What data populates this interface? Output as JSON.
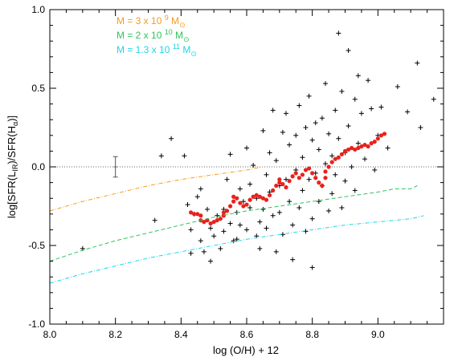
{
  "chart_data": {
    "type": "scatter",
    "xlabel": "log (O/H) + 12",
    "ylabel": {
      "parts": [
        "log[SFR(L",
        "IR",
        ")/SFR(H",
        "α",
        ")]"
      ]
    },
    "xlim": [
      8.0,
      9.2
    ],
    "ylim": [
      -1.0,
      1.0
    ],
    "xticks": [
      8.0,
      8.2,
      8.4,
      8.6,
      8.8,
      9.0
    ],
    "xtick_labels": [
      "8.0",
      "8.2",
      "8.4",
      "8.6",
      "8.8",
      "9.0"
    ],
    "yticks": [
      -1.0,
      -0.5,
      0.0,
      0.5,
      1.0
    ],
    "ytick_labels": [
      "-1.0",
      "-0.5",
      "0.0",
      "0.5",
      "1.0"
    ],
    "grid": false,
    "legend_position": "top-left",
    "legend": [
      {
        "text": "M = 3 x 10",
        "exp": "9",
        "sub": "M",
        "sym": "⊙",
        "color": "#f39c24"
      },
      {
        "text": "M = 2 x 10",
        "exp": "10",
        "sub": "M",
        "sym": "⊙",
        "color": "#2fc45c"
      },
      {
        "text": "M = 1.3 x 10",
        "exp": "11",
        "sub": "M",
        "sym": "⊙",
        "color": "#1fd6e6"
      }
    ],
    "reference_line": {
      "y": 0.0,
      "style": "dotted",
      "color": "#666666"
    },
    "error_bar": {
      "x": 8.2,
      "y": 0.0,
      "yerr": 0.065
    },
    "series": [
      {
        "type": "scatter-plus",
        "color": "#000000",
        "points": [
          [
            8.1,
            -0.52
          ],
          [
            8.32,
            -0.34
          ],
          [
            8.34,
            0.07
          ],
          [
            8.37,
            0.18
          ],
          [
            8.41,
            0.07
          ],
          [
            8.42,
            -0.24
          ],
          [
            8.43,
            -0.4
          ],
          [
            8.43,
            -0.55
          ],
          [
            8.44,
            -0.3
          ],
          [
            8.45,
            -0.19
          ],
          [
            8.46,
            -0.14
          ],
          [
            8.46,
            -0.47
          ],
          [
            8.47,
            -0.54
          ],
          [
            8.48,
            -0.27
          ],
          [
            8.49,
            -0.39
          ],
          [
            8.49,
            -0.6
          ],
          [
            8.5,
            -0.44
          ],
          [
            8.51,
            -0.31
          ],
          [
            8.52,
            -0.52
          ],
          [
            8.53,
            -0.27
          ],
          [
            8.53,
            -0.41
          ],
          [
            8.54,
            -0.08
          ],
          [
            8.55,
            0.08
          ],
          [
            8.55,
            -0.36
          ],
          [
            8.56,
            -0.47
          ],
          [
            8.57,
            -0.29
          ],
          [
            8.57,
            -0.46
          ],
          [
            8.58,
            -0.14
          ],
          [
            8.58,
            -0.37
          ],
          [
            8.59,
            -0.22
          ],
          [
            8.6,
            0.12
          ],
          [
            8.6,
            -0.4
          ],
          [
            8.61,
            -0.11
          ],
          [
            8.61,
            -0.26
          ],
          [
            8.62,
            0.01
          ],
          [
            8.63,
            -0.2
          ],
          [
            8.63,
            -0.44
          ],
          [
            8.64,
            -0.35
          ],
          [
            8.64,
            -0.52
          ],
          [
            8.65,
            0.23
          ],
          [
            8.65,
            -0.27
          ],
          [
            8.66,
            -0.05
          ],
          [
            8.66,
            -0.39
          ],
          [
            8.67,
            0.09
          ],
          [
            8.67,
            -0.16
          ],
          [
            8.68,
            0.36
          ],
          [
            8.68,
            -0.31
          ],
          [
            8.69,
            -0.54
          ],
          [
            8.69,
            0.04
          ],
          [
            8.7,
            -0.12
          ],
          [
            8.7,
            -0.29
          ],
          [
            8.71,
            0.22
          ],
          [
            8.71,
            -0.43
          ],
          [
            8.72,
            0.34
          ],
          [
            8.72,
            -0.08
          ],
          [
            8.73,
            -0.22
          ],
          [
            8.73,
            0.14
          ],
          [
            8.74,
            -0.37
          ],
          [
            8.74,
            -0.59
          ],
          [
            8.75,
            0.2
          ],
          [
            8.75,
            -0.02
          ],
          [
            8.76,
            -0.26
          ],
          [
            8.76,
            0.39
          ],
          [
            8.77,
            0.06
          ],
          [
            8.77,
            -0.15
          ],
          [
            8.78,
            -0.41
          ],
          [
            8.78,
            0.25
          ],
          [
            8.79,
            0.45
          ],
          [
            8.79,
            -0.08
          ],
          [
            8.8,
            0.17
          ],
          [
            8.8,
            -0.33
          ],
          [
            8.8,
            -0.64
          ],
          [
            8.81,
            0.28
          ],
          [
            8.81,
            -0.04
          ],
          [
            8.82,
            0.11
          ],
          [
            8.82,
            -0.22
          ],
          [
            8.83,
            0.31
          ],
          [
            8.83,
            -0.12
          ],
          [
            8.84,
            0.53
          ],
          [
            8.84,
            0.02
          ],
          [
            8.85,
            -0.28
          ],
          [
            8.85,
            0.21
          ],
          [
            8.86,
            0.07
          ],
          [
            8.86,
            -0.17
          ],
          [
            8.87,
            0.36
          ],
          [
            8.87,
            -0.05
          ],
          [
            8.88,
            0.85
          ],
          [
            8.88,
            0.18
          ],
          [
            8.89,
            -0.26
          ],
          [
            8.89,
            0.48
          ],
          [
            8.9,
            0.09
          ],
          [
            8.9,
            -0.09
          ],
          [
            8.91,
            0.74
          ],
          [
            8.91,
            0.26
          ],
          [
            8.92,
            0.0
          ],
          [
            8.93,
            0.43
          ],
          [
            8.93,
            -0.15
          ],
          [
            8.94,
            0.58
          ],
          [
            8.94,
            0.15
          ],
          [
            8.95,
            0.34
          ],
          [
            8.96,
            0.05
          ],
          [
            8.97,
            0.55
          ],
          [
            8.98,
            0.37
          ],
          [
            8.99,
            -0.02
          ],
          [
            9.0,
            0.2
          ],
          [
            9.01,
            0.38
          ],
          [
            9.03,
            0.12
          ],
          [
            9.06,
            0.51
          ],
          [
            9.09,
            0.35
          ],
          [
            9.12,
            0.66
          ],
          [
            9.13,
            0.25
          ],
          [
            9.17,
            0.43
          ]
        ]
      },
      {
        "type": "scatter-dot",
        "color": "#e8221c",
        "points": [
          [
            8.43,
            -0.29
          ],
          [
            8.44,
            -0.3
          ],
          [
            8.45,
            -0.3
          ],
          [
            8.46,
            -0.31
          ],
          [
            8.46,
            -0.34
          ],
          [
            8.47,
            -0.35
          ],
          [
            8.48,
            -0.34
          ],
          [
            8.49,
            -0.36
          ],
          [
            8.5,
            -0.35
          ],
          [
            8.51,
            -0.34
          ],
          [
            8.52,
            -0.33
          ],
          [
            8.53,
            -0.31
          ],
          [
            8.53,
            -0.29
          ],
          [
            8.54,
            -0.28
          ],
          [
            8.55,
            -0.25
          ],
          [
            8.56,
            -0.22
          ],
          [
            8.56,
            -0.19
          ],
          [
            8.57,
            -0.2
          ],
          [
            8.58,
            -0.23
          ],
          [
            8.59,
            -0.25
          ],
          [
            8.6,
            -0.24
          ],
          [
            8.61,
            -0.21
          ],
          [
            8.62,
            -0.19
          ],
          [
            8.63,
            -0.18
          ],
          [
            8.64,
            -0.19
          ],
          [
            8.65,
            -0.2
          ],
          [
            8.66,
            -0.21
          ],
          [
            8.67,
            -0.18
          ],
          [
            8.68,
            -0.15
          ],
          [
            8.69,
            -0.12
          ],
          [
            8.7,
            -0.1
          ],
          [
            8.7,
            -0.08
          ],
          [
            8.71,
            -0.11
          ],
          [
            8.72,
            -0.13
          ],
          [
            8.73,
            -0.09
          ],
          [
            8.74,
            -0.06
          ],
          [
            8.75,
            -0.04
          ],
          [
            8.76,
            -0.07
          ],
          [
            8.77,
            -0.05
          ],
          [
            8.78,
            -0.02
          ],
          [
            8.79,
            -0.01
          ],
          [
            8.8,
            -0.04
          ],
          [
            8.81,
            -0.07
          ],
          [
            8.82,
            -0.1
          ],
          [
            8.83,
            -0.12
          ],
          [
            8.84,
            -0.07
          ],
          [
            8.84,
            -0.03
          ],
          [
            8.85,
            0.0
          ],
          [
            8.86,
            0.03
          ],
          [
            8.87,
            0.05
          ],
          [
            8.88,
            0.06
          ],
          [
            8.89,
            0.08
          ],
          [
            8.9,
            0.1
          ],
          [
            8.91,
            0.11
          ],
          [
            8.92,
            0.12
          ],
          [
            8.93,
            0.11
          ],
          [
            8.94,
            0.12
          ],
          [
            8.95,
            0.13
          ],
          [
            8.96,
            0.14
          ],
          [
            8.97,
            0.13
          ],
          [
            8.98,
            0.15
          ],
          [
            8.99,
            0.16
          ],
          [
            9.0,
            0.18
          ],
          [
            9.01,
            0.2
          ],
          [
            9.02,
            0.21
          ]
        ]
      },
      {
        "type": "line",
        "style": "dash-dot",
        "color": "#f39c24",
        "points": [
          [
            8.0,
            -0.28
          ],
          [
            8.1,
            -0.22
          ],
          [
            8.2,
            -0.17
          ],
          [
            8.3,
            -0.12
          ],
          [
            8.4,
            -0.08
          ],
          [
            8.5,
            -0.05
          ],
          [
            8.6,
            -0.02
          ],
          [
            8.65,
            0.0
          ]
        ]
      },
      {
        "type": "line",
        "style": "dashed",
        "color": "#2fc45c",
        "points": [
          [
            8.0,
            -0.6
          ],
          [
            8.1,
            -0.53
          ],
          [
            8.2,
            -0.47
          ],
          [
            8.3,
            -0.42
          ],
          [
            8.4,
            -0.37
          ],
          [
            8.5,
            -0.32
          ],
          [
            8.6,
            -0.28
          ],
          [
            8.7,
            -0.25
          ],
          [
            8.8,
            -0.22
          ],
          [
            8.9,
            -0.19
          ],
          [
            9.0,
            -0.16
          ],
          [
            9.05,
            -0.14
          ],
          [
            9.1,
            -0.14
          ],
          [
            9.12,
            -0.12
          ]
        ]
      },
      {
        "type": "line",
        "style": "dash-dot",
        "color": "#1fd6e6",
        "points": [
          [
            8.0,
            -0.74
          ],
          [
            8.1,
            -0.68
          ],
          [
            8.2,
            -0.63
          ],
          [
            8.3,
            -0.58
          ],
          [
            8.4,
            -0.54
          ],
          [
            8.5,
            -0.5
          ],
          [
            8.6,
            -0.46
          ],
          [
            8.7,
            -0.43
          ],
          [
            8.8,
            -0.4
          ],
          [
            8.9,
            -0.37
          ],
          [
            9.0,
            -0.35
          ],
          [
            9.1,
            -0.33
          ],
          [
            9.14,
            -0.31
          ]
        ]
      }
    ]
  }
}
